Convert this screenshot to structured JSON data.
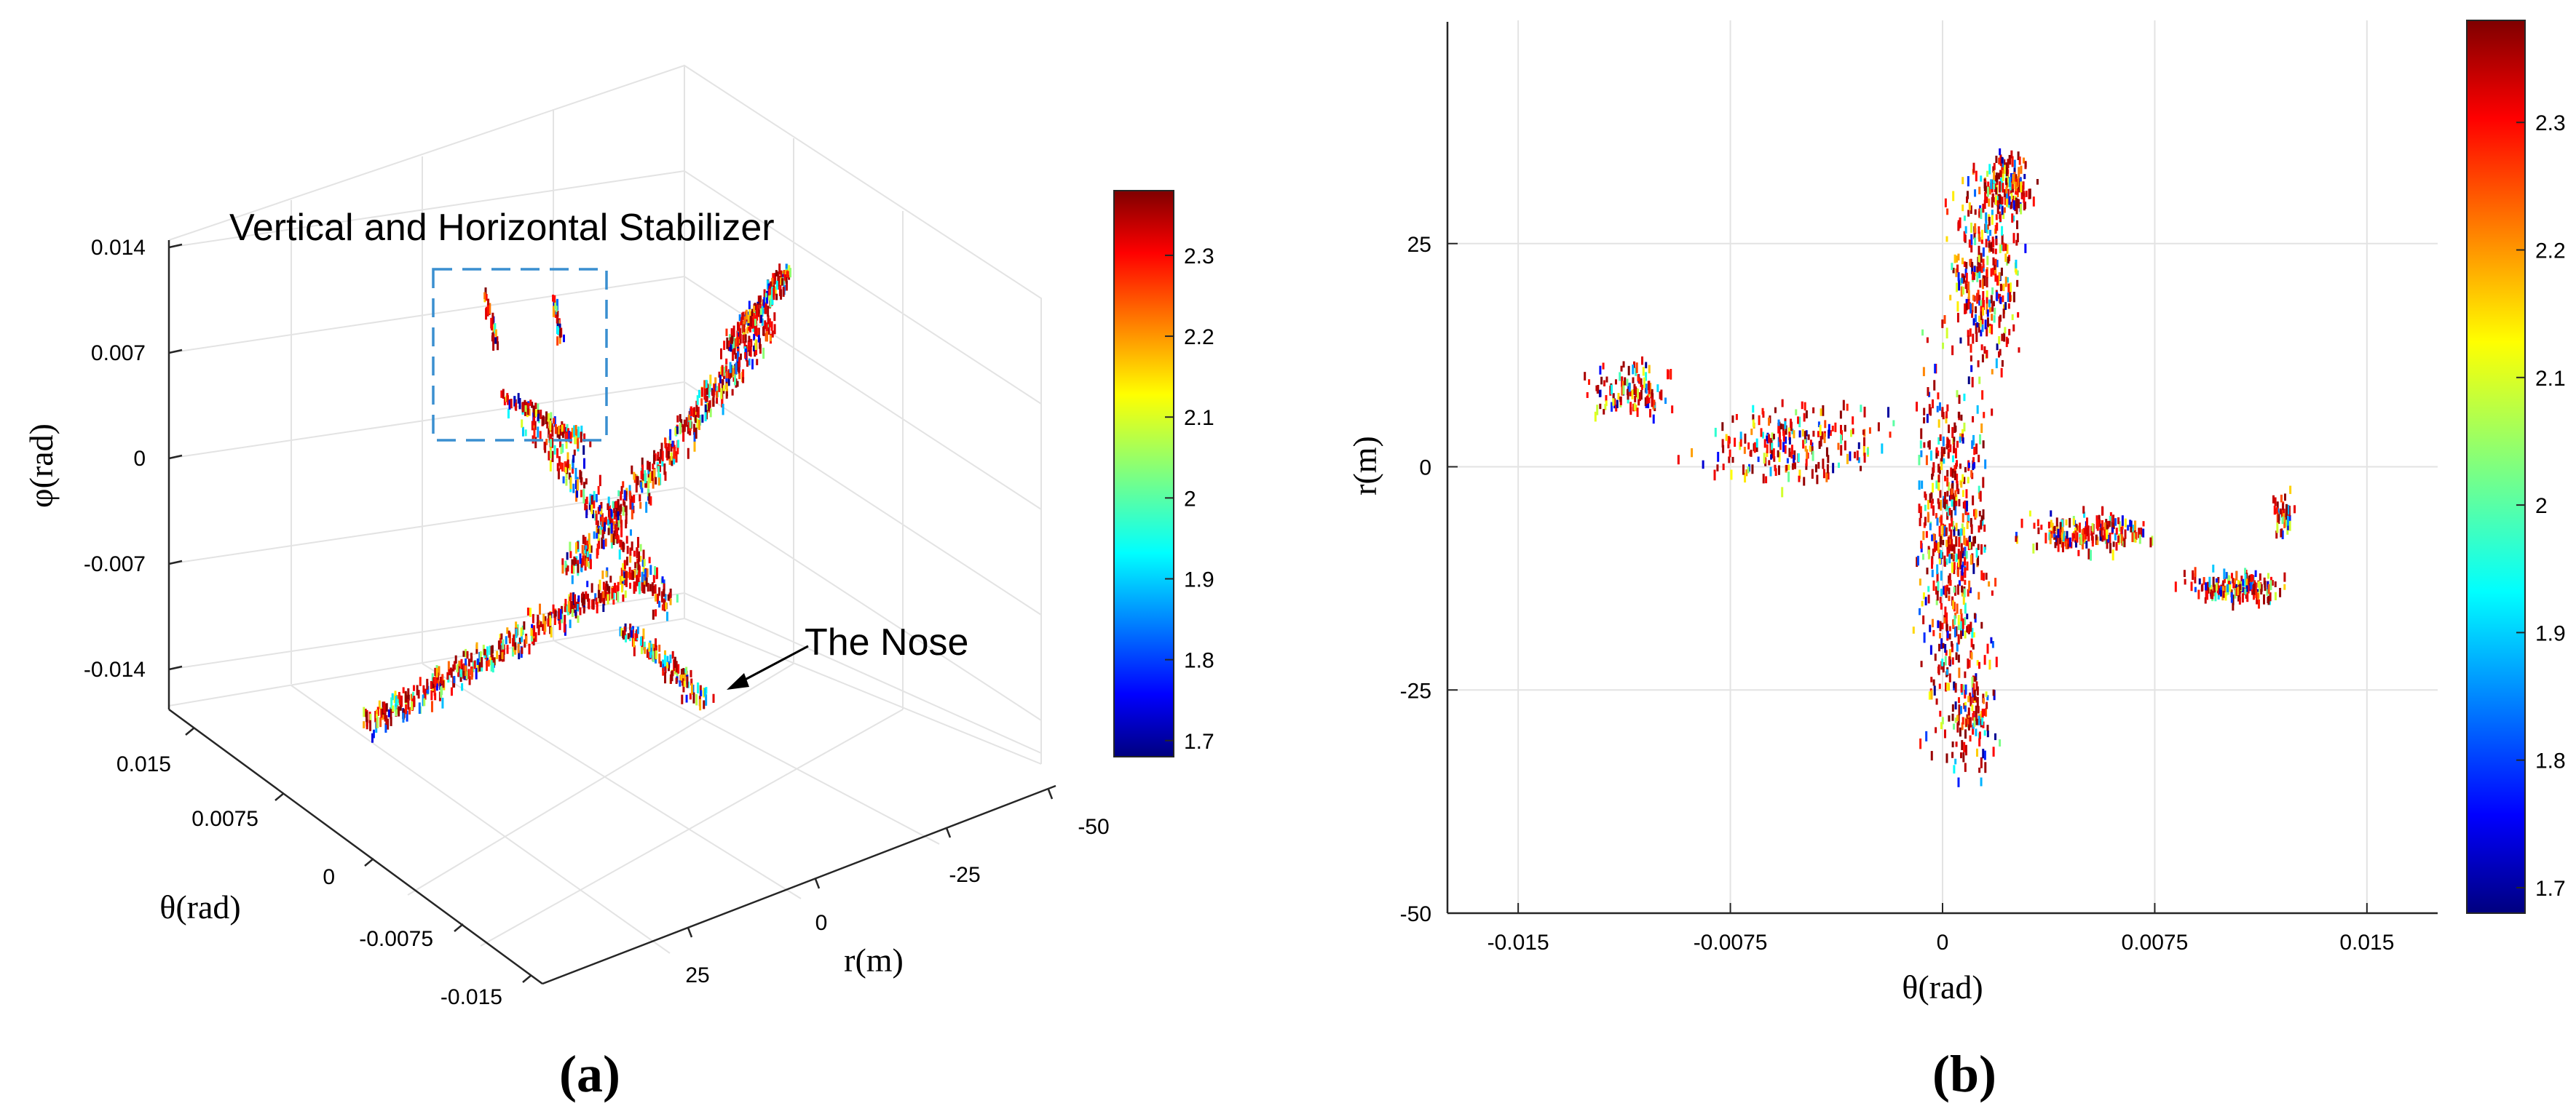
{
  "chart_data": [
    {
      "type": "scatter",
      "panel_label": "(a)",
      "projection": "3d",
      "xlabel": "θ(rad)",
      "ylabel": "r(m)",
      "zlabel": "φ(rad)",
      "x_ticks": [
        "0.015",
        "0.0075",
        "0",
        "-0.0075",
        "-0.015"
      ],
      "y_ticks": [
        "25",
        "0",
        "-25",
        "-50"
      ],
      "z_ticks": [
        "0.014",
        "0.007",
        "0",
        "-0.007",
        "-0.014"
      ],
      "colorbar": {
        "ticks": [
          "2.3",
          "2.2",
          "2.1",
          "2",
          "1.9",
          "1.8",
          "1.7"
        ],
        "range": [
          1.68,
          2.38
        ],
        "colormap": "jet"
      },
      "annotations": [
        {
          "text": "Vertical and Horizontal Stabilizer"
        },
        {
          "text": "The Nose"
        }
      ],
      "grid": true
    },
    {
      "type": "scatter",
      "panel_label": "(b)",
      "projection": "top-view",
      "xlabel": "θ(rad)",
      "ylabel": "r(m)",
      "xlim": [
        -0.0175,
        0.0175
      ],
      "ylim": [
        -50,
        50
      ],
      "x_ticks": [
        "-0.015",
        "-0.0075",
        "0",
        "0.0075",
        "0.015"
      ],
      "y_ticks": [
        "25",
        "0",
        "-25",
        "-50"
      ],
      "colorbar": {
        "ticks": [
          "2.3",
          "2.2",
          "2.1",
          "2",
          "1.9",
          "1.8",
          "1.7"
        ],
        "range": [
          1.68,
          2.38
        ],
        "colormap": "jet"
      },
      "grid": true
    }
  ]
}
